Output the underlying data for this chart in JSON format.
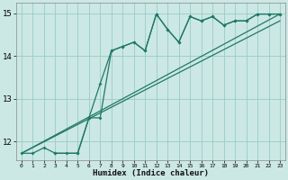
{
  "xlabel": "Humidex (Indice chaleur)",
  "bg_color": "#cce8e4",
  "grid_color": "#99ccc4",
  "line_color": "#207868",
  "xlim": [
    -0.5,
    23.5
  ],
  "ylim": [
    11.55,
    15.25
  ],
  "xticks": [
    0,
    1,
    2,
    3,
    4,
    5,
    6,
    7,
    8,
    9,
    10,
    11,
    12,
    13,
    14,
    15,
    16,
    17,
    18,
    19,
    20,
    21,
    22,
    23
  ],
  "yticks": [
    12,
    13,
    14,
    15
  ],
  "series_zigzag1": {
    "x": [
      0,
      1,
      2,
      3,
      4,
      5,
      6,
      7,
      8,
      9,
      10,
      11,
      12,
      13,
      14,
      15,
      16,
      17,
      18,
      19,
      20,
      21,
      22,
      23
    ],
    "y": [
      11.72,
      11.72,
      11.85,
      11.72,
      11.72,
      11.72,
      12.55,
      12.55,
      14.12,
      14.22,
      14.32,
      14.12,
      14.98,
      14.62,
      14.32,
      14.92,
      14.82,
      14.92,
      14.72,
      14.82,
      14.82,
      14.98,
      14.98,
      14.98
    ]
  },
  "series_zigzag2": {
    "x": [
      3,
      5,
      6,
      7,
      8,
      9,
      10,
      11,
      12,
      13,
      14,
      15,
      16,
      17,
      18,
      19,
      20,
      21,
      22,
      23
    ],
    "y": [
      11.72,
      11.72,
      12.55,
      13.35,
      14.12,
      14.22,
      14.32,
      14.12,
      14.98,
      14.62,
      14.32,
      14.92,
      14.82,
      14.92,
      14.72,
      14.82,
      14.82,
      14.98,
      14.98,
      14.98
    ]
  },
  "series_linear1": {
    "x": [
      0,
      23
    ],
    "y": [
      11.72,
      14.98
    ]
  },
  "series_linear2": {
    "x": [
      0,
      23
    ],
    "y": [
      11.72,
      14.82
    ]
  }
}
